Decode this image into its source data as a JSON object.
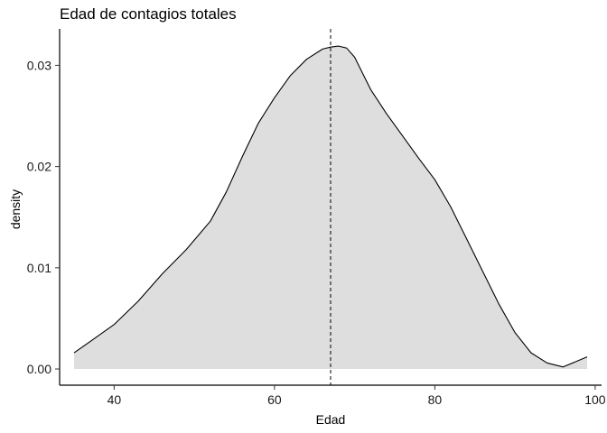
{
  "chart_data": {
    "type": "area",
    "title": "Edad de contagios totales",
    "xlabel": "Edad",
    "ylabel": "density",
    "xlim": [
      33.2,
      100.8
    ],
    "ylim": [
      -0.0016,
      0.0336
    ],
    "x_ticks": [
      40,
      60,
      80,
      100
    ],
    "y_ticks": [
      0.0,
      0.01,
      0.02,
      0.03
    ],
    "y_tick_labels": [
      "0.00",
      "0.01",
      "0.02",
      "0.03"
    ],
    "grid": false,
    "legend": "none",
    "fill_color": "#dedede",
    "line_color": "#000000",
    "vline": {
      "x": 67,
      "style": "dashed"
    },
    "series": [
      {
        "x": [
          35,
          37,
          40,
          43,
          46,
          49,
          52,
          54,
          56,
          58,
          60,
          62,
          64,
          66,
          67,
          68,
          69,
          70,
          71,
          72,
          74,
          76,
          78,
          80,
          82,
          84,
          86,
          88,
          90,
          92,
          94,
          96,
          99
        ],
        "y": [
          0.0016,
          0.0027,
          0.0044,
          0.0067,
          0.0094,
          0.0118,
          0.0146,
          0.0175,
          0.021,
          0.0243,
          0.0268,
          0.029,
          0.0306,
          0.0316,
          0.0318,
          0.0319,
          0.0317,
          0.0308,
          0.0292,
          0.0276,
          0.0252,
          0.023,
          0.0208,
          0.0187,
          0.016,
          0.0128,
          0.0096,
          0.0064,
          0.0036,
          0.0016,
          0.0006,
          0.0002,
          0.0012
        ]
      }
    ]
  }
}
